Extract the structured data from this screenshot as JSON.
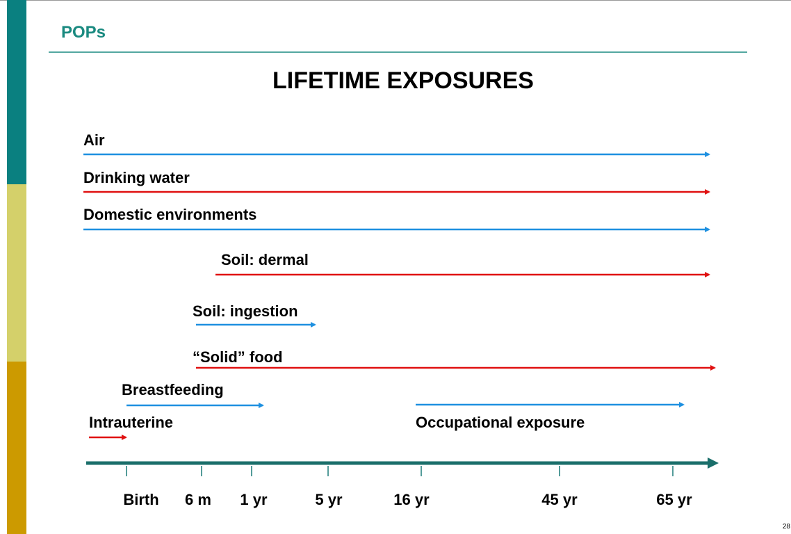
{
  "header": "POPs",
  "title": "LIFETIME EXPOSURES",
  "exposures": [
    {
      "label": "Air"
    },
    {
      "label": "Drinking water"
    },
    {
      "label": "Domestic environments"
    },
    {
      "label": "Soil: dermal"
    },
    {
      "label": "Soil: ingestion"
    },
    {
      "label": "“Solid” food"
    },
    {
      "label": "Breastfeeding"
    },
    {
      "label": "Intrauterine"
    },
    {
      "label": "Occupational exposure"
    }
  ],
  "timeline": [
    "Birth",
    "6 m",
    "1 yr",
    "5 yr",
    "16 yr",
    "45 yr",
    "65 yr"
  ],
  "page_number": "28"
}
